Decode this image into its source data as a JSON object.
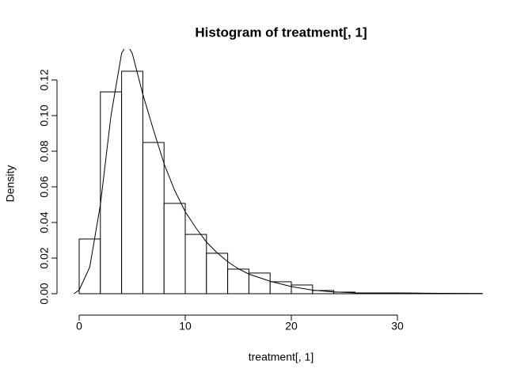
{
  "chart_data": {
    "type": "histogram",
    "title": "Histogram of treatment[, 1]",
    "x_label": "treatment[, 1]",
    "y_label": "Density",
    "bins": [
      0,
      2,
      4,
      6,
      8,
      10,
      12,
      14,
      16,
      18,
      20,
      22,
      24,
      26,
      28,
      30,
      32,
      34,
      36,
      38
    ],
    "values": [
      0.0307,
      0.1133,
      0.1249,
      0.0849,
      0.0507,
      0.0333,
      0.0227,
      0.0138,
      0.0116,
      0.0067,
      0.0049,
      0.0018,
      0.0009,
      0.0004,
      0.0004,
      0.0003,
      0.0001,
      0.0001,
      0.0001
    ],
    "bar_color": "#ffffff",
    "density": {
      "x": [
        -0.5,
        0,
        1,
        2,
        3,
        4,
        4.5,
        5,
        6,
        7,
        8,
        9,
        10,
        11,
        12,
        13,
        14,
        15,
        16,
        18,
        20,
        22,
        24,
        26,
        30,
        34,
        38
      ],
      "values": [
        0,
        0.002,
        0.015,
        0.05,
        0.1,
        0.135,
        0.14,
        0.135,
        0.112,
        0.092,
        0.073,
        0.058,
        0.046,
        0.037,
        0.029,
        0.023,
        0.018,
        0.014,
        0.011,
        0.007,
        0.004,
        0.002,
        0.001,
        0.0005,
        0.0004,
        0.0002,
        0.0001
      ],
      "color": "#000000"
    },
    "xlim": [
      -2.09,
      39.55
    ],
    "ylim": [
      -0.012,
      0.13
    ],
    "xticks": [
      0,
      10,
      20,
      30
    ],
    "yticks": [
      {
        "value": 0,
        "label": "0.00"
      },
      {
        "value": 0.02,
        "label": "0.02"
      },
      {
        "value": 0.04,
        "label": "0.04"
      },
      {
        "value": 0.06,
        "label": "0.06"
      },
      {
        "value": 0.08,
        "label": "0.08"
      },
      {
        "value": 0.1,
        "label": "0.10"
      },
      {
        "value": 0.12,
        "label": "0.12"
      }
    ]
  }
}
